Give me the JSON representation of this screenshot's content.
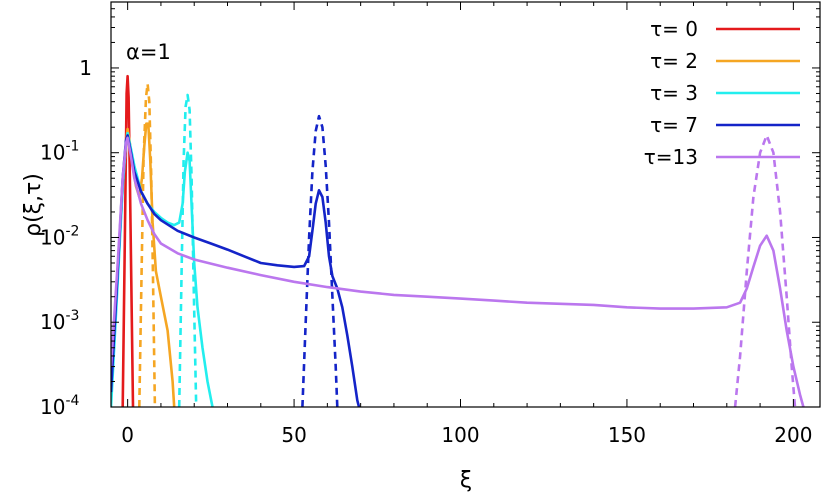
{
  "chart_data": {
    "type": "line",
    "title": "",
    "xlabel": "ξ",
    "ylabel": "ρ(ξ,τ)",
    "annotation": "α=1",
    "xlim": [
      -5,
      208
    ],
    "ylim": [
      0.0001,
      6
    ],
    "yscale": "log",
    "grid": false,
    "legend_position": "top-right",
    "x_ticks": [
      {
        "value": 0,
        "label": "0"
      },
      {
        "value": 50,
        "label": "50"
      },
      {
        "value": 100,
        "label": "100"
      },
      {
        "value": 150,
        "label": "150"
      },
      {
        "value": 200,
        "label": "200"
      }
    ],
    "y_ticks": [
      {
        "value": 0.0001,
        "base": "10",
        "exp": "-4"
      },
      {
        "value": 0.001,
        "base": "10",
        "exp": "-3"
      },
      {
        "value": 0.01,
        "base": "10",
        "exp": "-2"
      },
      {
        "value": 0.1,
        "base": "10",
        "exp": "-1"
      },
      {
        "value": 1,
        "base": "1",
        "exp": ""
      }
    ],
    "series": [
      {
        "name": "τ= 0",
        "color": "#e41a1c",
        "solid": [
          [
            -1.5,
            0.0001
          ],
          [
            -1,
            0.003
          ],
          [
            -0.6,
            0.05
          ],
          [
            -0.3,
            0.5
          ],
          [
            0,
            0.8
          ],
          [
            0.3,
            0.45
          ],
          [
            0.7,
            0.04
          ],
          [
            1.1,
            0.003
          ],
          [
            1.6,
            0.0001
          ]
        ],
        "dashed": []
      },
      {
        "name": "τ= 2",
        "color": "#f5a623",
        "solid": [
          [
            -5,
            0.0002
          ],
          [
            -3,
            0.004
          ],
          [
            -1.5,
            0.04
          ],
          [
            -0.5,
            0.13
          ],
          [
            0,
            0.19
          ],
          [
            0.8,
            0.12
          ],
          [
            1.5,
            0.07
          ],
          [
            2.5,
            0.04
          ],
          [
            3.5,
            0.03
          ],
          [
            4.3,
            0.05
          ],
          [
            5,
            0.12
          ],
          [
            5.6,
            0.22
          ],
          [
            6.2,
            0.22
          ],
          [
            6.8,
            0.08
          ],
          [
            7.5,
            0.015
          ],
          [
            8.5,
            0.004
          ],
          [
            10,
            0.002
          ],
          [
            12,
            0.0008
          ],
          [
            13.5,
            0.0002
          ],
          [
            14,
            0.0001
          ]
        ],
        "dashed": [
          [
            3.5,
            0.0001
          ],
          [
            4.2,
            0.004
          ],
          [
            4.8,
            0.09
          ],
          [
            5.5,
            0.45
          ],
          [
            6,
            0.65
          ],
          [
            6.5,
            0.4
          ],
          [
            7.1,
            0.05
          ],
          [
            7.6,
            0.004
          ],
          [
            8.2,
            0.0001
          ]
        ]
      },
      {
        "name": "τ= 3",
        "color": "#22eeee",
        "solid": [
          [
            -5,
            0.0001
          ],
          [
            -3,
            0.003
          ],
          [
            -1.5,
            0.04
          ],
          [
            -0.5,
            0.13
          ],
          [
            0,
            0.17
          ],
          [
            1,
            0.11
          ],
          [
            2,
            0.07
          ],
          [
            3,
            0.05
          ],
          [
            4,
            0.035
          ],
          [
            6,
            0.025
          ],
          [
            8,
            0.02
          ],
          [
            10,
            0.017
          ],
          [
            12,
            0.015
          ],
          [
            14,
            0.014
          ],
          [
            15.5,
            0.015
          ],
          [
            16.5,
            0.025
          ],
          [
            17.2,
            0.06
          ],
          [
            18,
            0.1
          ],
          [
            18.6,
            0.08
          ],
          [
            19.3,
            0.02
          ],
          [
            20,
            0.005
          ],
          [
            21,
            0.0015
          ],
          [
            22.5,
            0.0005
          ],
          [
            24,
            0.0002
          ],
          [
            25.5,
            0.0001
          ]
        ],
        "dashed": [
          [
            15.5,
            0.0001
          ],
          [
            16.2,
            0.004
          ],
          [
            16.8,
            0.08
          ],
          [
            17.4,
            0.35
          ],
          [
            18,
            0.48
          ],
          [
            18.6,
            0.32
          ],
          [
            19.2,
            0.05
          ],
          [
            19.8,
            0.003
          ],
          [
            20.6,
            0.0001
          ]
        ]
      },
      {
        "name": "τ= 7",
        "color": "#1424c8",
        "solid": [
          [
            -5,
            0.00015
          ],
          [
            -3,
            0.004
          ],
          [
            -1.5,
            0.05
          ],
          [
            -0.5,
            0.14
          ],
          [
            0,
            0.16
          ],
          [
            1,
            0.1
          ],
          [
            2,
            0.06
          ],
          [
            4,
            0.035
          ],
          [
            6,
            0.025
          ],
          [
            8,
            0.019
          ],
          [
            10,
            0.016
          ],
          [
            15,
            0.012
          ],
          [
            20,
            0.01
          ],
          [
            25,
            0.0085
          ],
          [
            30,
            0.0072
          ],
          [
            35,
            0.006
          ],
          [
            40,
            0.005
          ],
          [
            45,
            0.0047
          ],
          [
            50,
            0.0045
          ],
          [
            53,
            0.0046
          ],
          [
            54.5,
            0.006
          ],
          [
            55.5,
            0.012
          ],
          [
            56.5,
            0.025
          ],
          [
            57.5,
            0.036
          ],
          [
            58.5,
            0.03
          ],
          [
            59.5,
            0.015
          ],
          [
            60.5,
            0.006
          ],
          [
            61.5,
            0.0035
          ],
          [
            63,
            0.0025
          ],
          [
            64.5,
            0.0015
          ],
          [
            66,
            0.0007
          ],
          [
            67.5,
            0.0003
          ],
          [
            69,
            0.00012
          ],
          [
            69.5,
            0.0001
          ]
        ],
        "dashed": [
          [
            52.5,
            0.0001
          ],
          [
            53.5,
            0.001
          ],
          [
            54.5,
            0.01
          ],
          [
            55.5,
            0.06
          ],
          [
            56.5,
            0.18
          ],
          [
            57.5,
            0.27
          ],
          [
            58.5,
            0.2
          ],
          [
            59.5,
            0.07
          ],
          [
            60.5,
            0.015
          ],
          [
            61.5,
            0.002
          ],
          [
            62.5,
            0.0003
          ],
          [
            63,
            0.0001
          ]
        ]
      },
      {
        "name": "τ=13",
        "color": "#bb77ee",
        "solid": [
          [
            -5,
            0.0003
          ],
          [
            -3,
            0.005
          ],
          [
            -1.5,
            0.05
          ],
          [
            -0.5,
            0.13
          ],
          [
            0,
            0.15
          ],
          [
            1,
            0.09
          ],
          [
            2,
            0.05
          ],
          [
            4,
            0.025
          ],
          [
            6,
            0.016
          ],
          [
            8,
            0.011
          ],
          [
            10,
            0.0085
          ],
          [
            15,
            0.0065
          ],
          [
            20,
            0.0055
          ],
          [
            30,
            0.0044
          ],
          [
            40,
            0.0036
          ],
          [
            50,
            0.003
          ],
          [
            60,
            0.0026
          ],
          [
            70,
            0.0023
          ],
          [
            80,
            0.0021
          ],
          [
            90,
            0.002
          ],
          [
            100,
            0.0019
          ],
          [
            110,
            0.0018
          ],
          [
            120,
            0.0017
          ],
          [
            130,
            0.00165
          ],
          [
            140,
            0.0016
          ],
          [
            150,
            0.0015
          ],
          [
            160,
            0.00145
          ],
          [
            170,
            0.00145
          ],
          [
            180,
            0.0015
          ],
          [
            184,
            0.0017
          ],
          [
            186,
            0.0025
          ],
          [
            188,
            0.0045
          ],
          [
            190,
            0.008
          ],
          [
            192,
            0.0105
          ],
          [
            194,
            0.007
          ],
          [
            196,
            0.0025
          ],
          [
            198,
            0.0008
          ],
          [
            200,
            0.0003
          ],
          [
            202,
            0.00014
          ],
          [
            203,
            0.0001
          ]
        ],
        "dashed": [
          [
            182.5,
            0.0001
          ],
          [
            184,
            0.0004
          ],
          [
            186,
            0.004
          ],
          [
            188,
            0.03
          ],
          [
            190,
            0.1
          ],
          [
            192,
            0.16
          ],
          [
            194,
            0.1
          ],
          [
            196,
            0.02
          ],
          [
            198,
            0.002
          ],
          [
            199.5,
            0.0003
          ],
          [
            200.5,
            0.0001
          ]
        ]
      }
    ]
  }
}
